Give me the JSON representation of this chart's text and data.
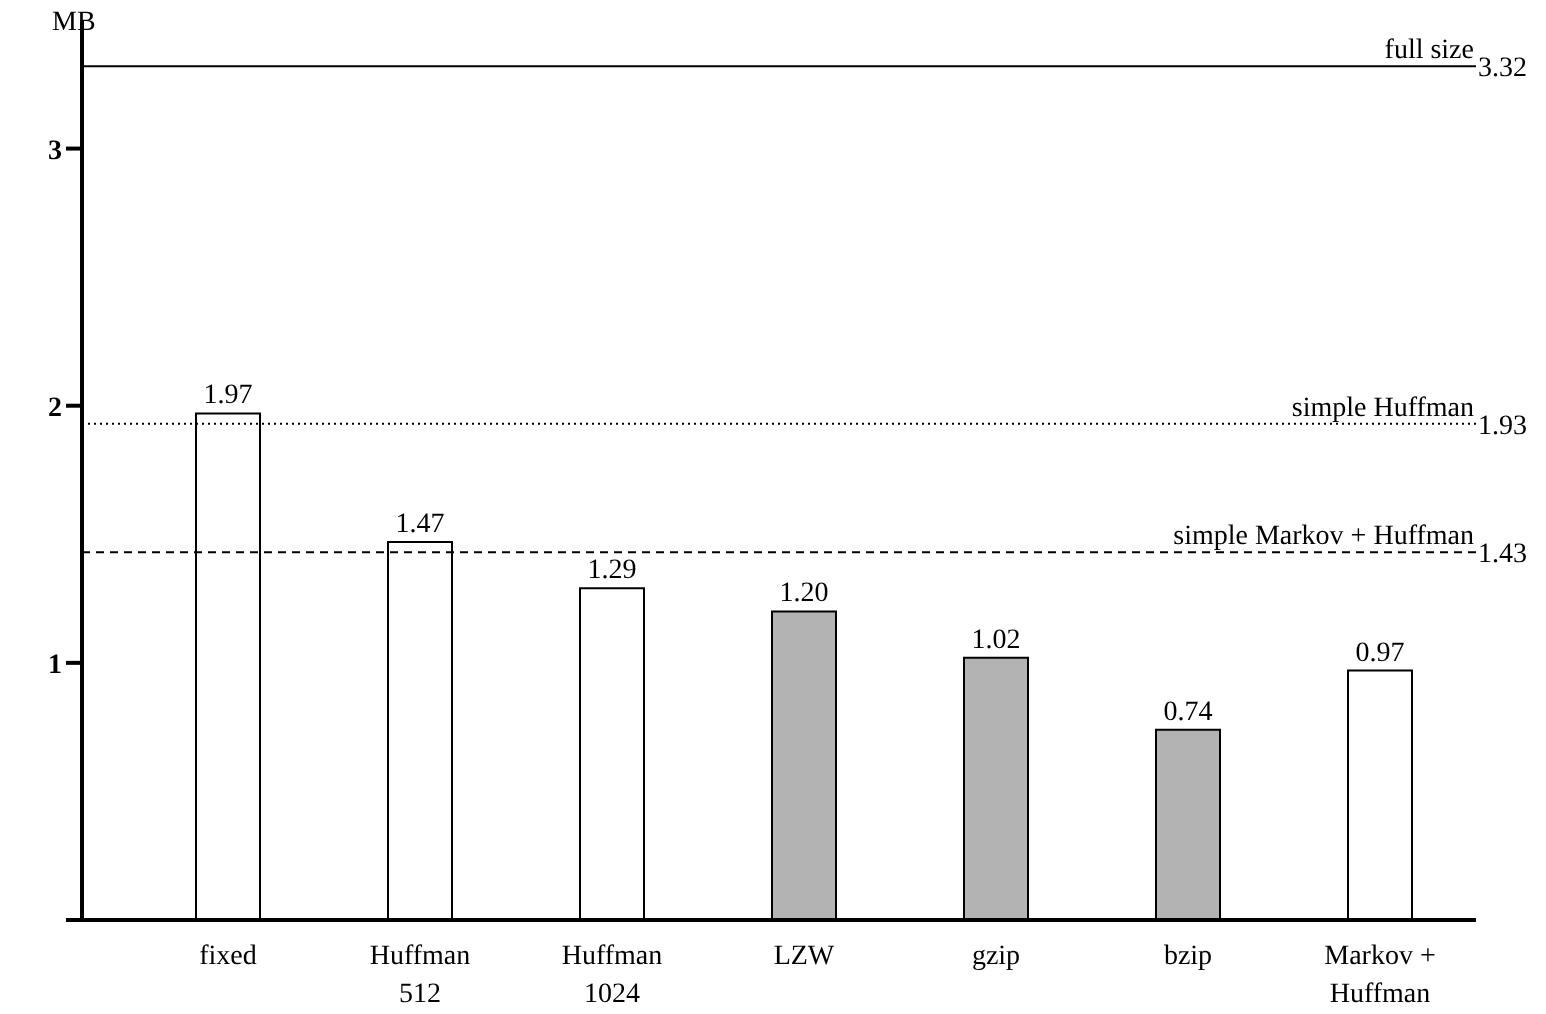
{
  "chart_data": {
    "type": "bar",
    "ylabel": "MB",
    "categories": [
      "fixed",
      "Huffman 512",
      "Huffman 1024",
      "LZW",
      "gzip",
      "bzip",
      "Markov + Huffman"
    ],
    "values": [
      1.97,
      1.47,
      1.29,
      1.2,
      1.02,
      0.74,
      0.97
    ],
    "value_labels": [
      "1.97",
      "1.47",
      "1.29",
      "1.20",
      "1.02",
      "0.74",
      "0.97"
    ],
    "colors": [
      "#ffffff",
      "#ffffff",
      "#ffffff",
      "#b3b3b3",
      "#b3b3b3",
      "#b3b3b3",
      "#ffffff"
    ],
    "ylim": [
      0,
      3.5
    ],
    "yticks": [
      {
        "value": 0,
        "label": null
      },
      1,
      2,
      3
    ],
    "ref_lines": [
      {
        "axis": "y",
        "value": 3.32,
        "label": "full size",
        "line_style": "solid"
      },
      {
        "axis": "y",
        "value": 1.93,
        "label": "simple Huffman",
        "line_style": "dotted"
      },
      {
        "axis": "y",
        "value": 1.43,
        "label": "simple Markov + Huffman",
        "line_style": "dashed"
      }
    ],
    "annotations": [
      "3.32",
      "1.93",
      "1.43"
    ],
    "grid": false,
    "legend": false
  }
}
